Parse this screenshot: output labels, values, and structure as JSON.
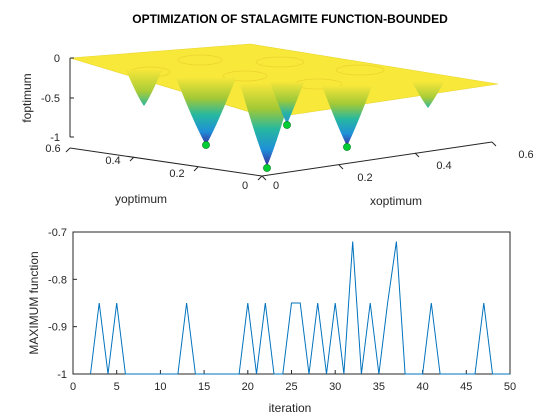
{
  "chart_data": [
    {
      "type": "surface",
      "title": "OPTIMIZATION OF STALAGMITE FUNCTION-BOUNDED",
      "xlabel": "xoptimum",
      "ylabel": "yoptimum",
      "zlabel": "foptimum",
      "xlim": [
        0,
        0.6
      ],
      "ylim": [
        0,
        0.6
      ],
      "zlim": [
        -1,
        0
      ],
      "x_ticks": [
        "0",
        "0.2",
        "0.4",
        "0.6"
      ],
      "y_ticks": [
        "0",
        "0.2",
        "0.4",
        "0.6"
      ],
      "z_ticks": [
        "0",
        "-0.5",
        "-1"
      ],
      "colormap": "parula",
      "marker_color": "#00cc33",
      "optimum_points": [
        {
          "x": 0.08,
          "y": 0.08,
          "z": -1.0
        },
        {
          "x": 0.25,
          "y": 0.08,
          "z": -0.85
        },
        {
          "x": 0.08,
          "y": 0.25,
          "z": -0.85
        },
        {
          "x": 0.25,
          "y": 0.25,
          "z": -0.72
        }
      ]
    },
    {
      "type": "line",
      "title": "",
      "xlabel": "iteration",
      "ylabel": "MAXIMUM function",
      "xlim": [
        0,
        50
      ],
      "ylim": [
        -1,
        -0.7
      ],
      "x_ticks": [
        "0",
        "5",
        "10",
        "15",
        "20",
        "25",
        "30",
        "35",
        "40",
        "45",
        "50"
      ],
      "y_ticks": [
        "-0.7",
        "-0.8",
        "-0.9",
        "-1"
      ],
      "line_color": "#0072bd",
      "series": [
        {
          "name": "",
          "x": [
            2,
            3,
            4,
            5,
            6,
            7,
            8,
            9,
            10,
            11,
            12,
            13,
            14,
            15,
            16,
            17,
            18,
            19,
            20,
            21,
            22,
            23,
            24,
            25,
            26,
            27,
            28,
            29,
            30,
            31,
            32,
            33,
            34,
            35,
            36,
            37,
            38,
            39,
            40,
            41,
            42,
            43,
            44,
            45,
            46,
            47,
            48,
            49,
            50
          ],
          "values": [
            -1,
            -0.85,
            -1,
            -0.85,
            -1,
            -1,
            -1,
            -1,
            -1,
            -1,
            -1,
            -0.85,
            -1,
            -1,
            -1,
            -1,
            -1,
            -1,
            -0.85,
            -1,
            -0.85,
            -1,
            -1,
            -0.85,
            -0.85,
            -1,
            -0.85,
            -1,
            -0.85,
            -1,
            -0.72,
            -1,
            -0.85,
            -1,
            -0.85,
            -0.72,
            -1,
            -1,
            -1,
            -0.85,
            -1,
            -1,
            -1,
            -1,
            -1,
            -0.85,
            -1,
            -1,
            -1
          ]
        }
      ]
    }
  ]
}
